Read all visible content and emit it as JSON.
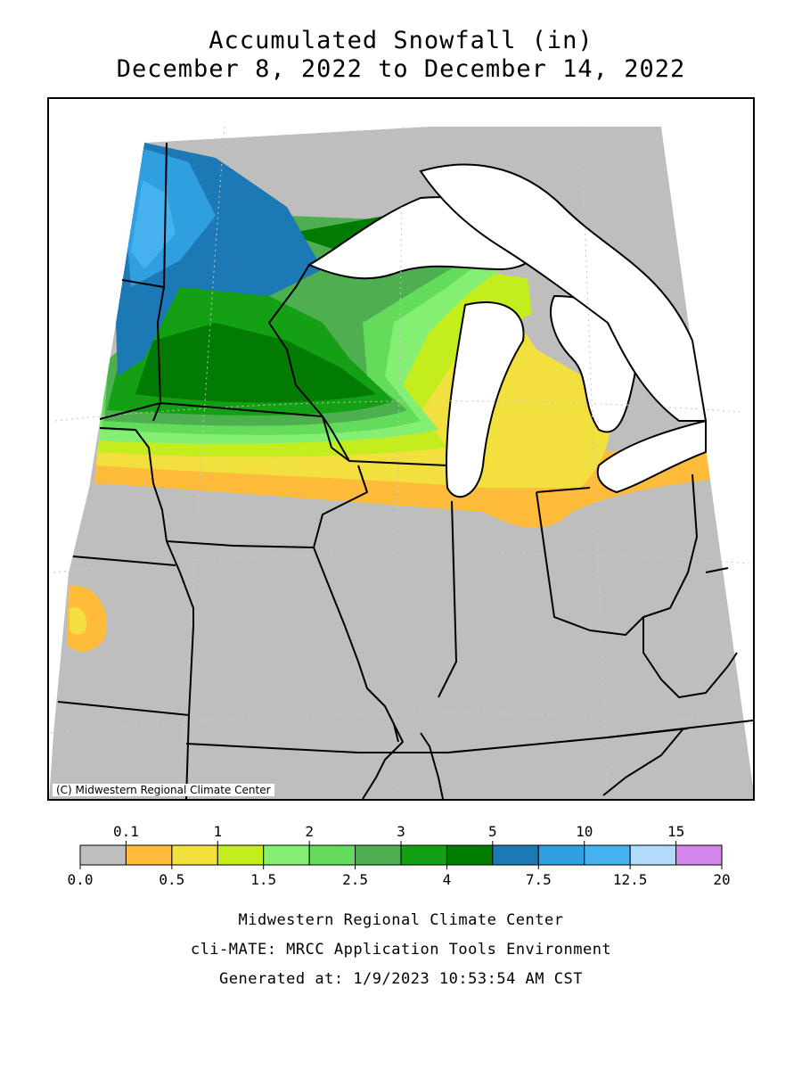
{
  "title": {
    "line1": "Accumulated Snowfall (in)",
    "line2": "December 8, 2022 to December 14, 2022"
  },
  "map": {
    "copyright": "(C) Midwestern Regional Climate Center",
    "colors": {
      "none": "#bebebe",
      "water": "#ffffff",
      "boundary": "#000000",
      "graticule": "#c8c8c8"
    }
  },
  "legend": {
    "top_labels": [
      "0.1",
      "1",
      "2",
      "3",
      "5",
      "10",
      "15"
    ],
    "bottom_labels": [
      "0.0",
      "0.5",
      "1.5",
      "2.5",
      "4",
      "7.5",
      "12.5",
      "20"
    ],
    "bins": [
      {
        "from": 0.0,
        "to": 0.1,
        "color": "#bebebe"
      },
      {
        "from": 0.1,
        "to": 0.5,
        "color": "#ffbb3a"
      },
      {
        "from": 0.5,
        "to": 1,
        "color": "#f2e03f"
      },
      {
        "from": 1,
        "to": 1.5,
        "color": "#c4ed1d"
      },
      {
        "from": 1.5,
        "to": 2,
        "color": "#85ef74"
      },
      {
        "from": 2,
        "to": 2.5,
        "color": "#63dc5c"
      },
      {
        "from": 2.5,
        "to": 3,
        "color": "#4eaf50"
      },
      {
        "from": 3,
        "to": 4,
        "color": "#14a014"
      },
      {
        "from": 4,
        "to": 5,
        "color": "#017b01"
      },
      {
        "from": 5,
        "to": 7.5,
        "color": "#1d79b6"
      },
      {
        "from": 7.5,
        "to": 10,
        "color": "#309fdf"
      },
      {
        "from": 10,
        "to": 12.5,
        "color": "#45b1ee"
      },
      {
        "from": 12.5,
        "to": 15,
        "color": "#b3dbfa"
      },
      {
        "from": 15,
        "to": 20,
        "color": "#d487ea"
      }
    ]
  },
  "footer": {
    "line1": "Midwestern Regional Climate Center",
    "line2": "cli-MATE: MRCC Application Tools Environment",
    "line3": "Generated at: 1/9/2023 10:53:54 AM CST"
  }
}
